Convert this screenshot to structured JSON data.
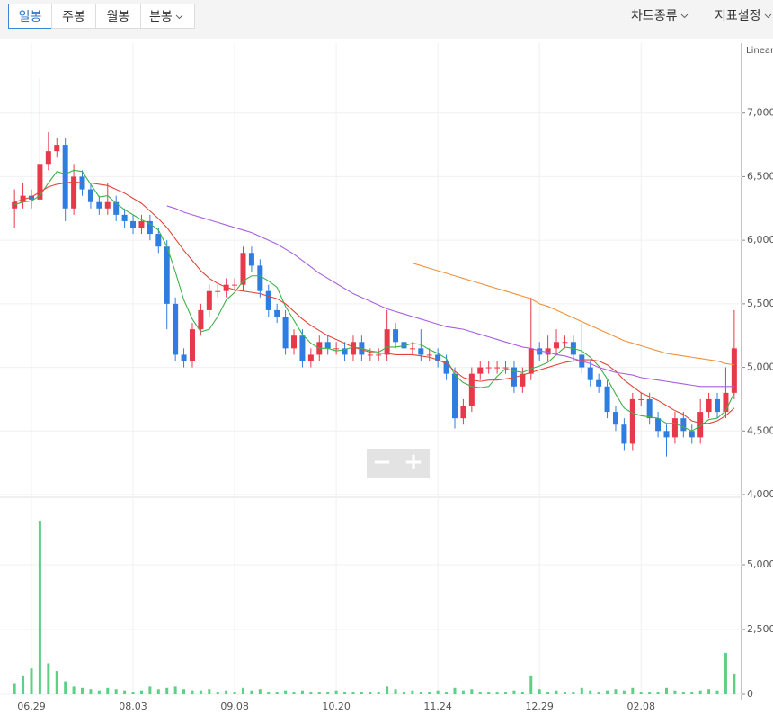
{
  "toolbar": {
    "periods": [
      "일봉",
      "주봉",
      "월봉",
      "분봉"
    ],
    "right": [
      "차트종류",
      "지표설정"
    ]
  },
  "chart_data": {
    "type": "candlestick",
    "scale_label": "Linear",
    "categories": [
      null,
      null,
      "06.29",
      null,
      null,
      null,
      null,
      null,
      null,
      null,
      null,
      null,
      null,
      null,
      "08.03",
      null,
      null,
      null,
      null,
      null,
      null,
      null,
      null,
      null,
      null,
      null,
      "09.08",
      null,
      null,
      null,
      null,
      null,
      null,
      null,
      null,
      null,
      null,
      null,
      "10.20",
      null,
      null,
      null,
      null,
      null,
      null,
      null,
      null,
      null,
      null,
      null,
      "11.24",
      null,
      null,
      null,
      null,
      null,
      null,
      null,
      null,
      null,
      null,
      null,
      "12.29",
      null,
      null,
      null,
      null,
      null,
      null,
      null,
      null,
      null,
      null,
      null,
      "02.08",
      null,
      null,
      null,
      null,
      null,
      null,
      null,
      null,
      null,
      null,
      null
    ],
    "open": [
      6250,
      6300,
      6350,
      6320,
      6600,
      6700,
      6750,
      6250,
      6500,
      6400,
      6300,
      6250,
      6300,
      6200,
      6150,
      6100,
      6150,
      6050,
      5950,
      5500,
      5100,
      5050,
      5300,
      5450,
      5600,
      5600,
      5650,
      5650,
      5900,
      5800,
      5600,
      5450,
      5400,
      5150,
      5250,
      5050,
      5100,
      5200,
      5150,
      5150,
      5100,
      5200,
      5100,
      5100,
      5100,
      5300,
      5200,
      5150,
      5150,
      5100,
      5100,
      5050,
      4950,
      4600,
      4700,
      4950,
      5000,
      5000,
      5000,
      5000,
      4850,
      4950,
      5150,
      5100,
      5150,
      5200,
      5200,
      5100,
      5000,
      4900,
      4850,
      4650,
      4550,
      4400,
      4750,
      4750,
      4600,
      4500,
      4450,
      4600,
      4500,
      4450,
      4650,
      4750,
      4650,
      4800
    ],
    "high": [
      6400,
      6450,
      6400,
      7270,
      6850,
      6800,
      6800,
      6600,
      6550,
      6450,
      6350,
      6450,
      6350,
      6250,
      6200,
      6200,
      6200,
      6100,
      6000,
      5550,
      5150,
      5350,
      5500,
      5650,
      5650,
      5700,
      5700,
      5950,
      5950,
      5850,
      5650,
      5500,
      5450,
      5300,
      5300,
      5150,
      5250,
      5250,
      5200,
      5200,
      5250,
      5250,
      5150,
      5150,
      5450,
      5350,
      5250,
      5200,
      5300,
      5150,
      5150,
      5100,
      5000,
      4750,
      5000,
      5050,
      5050,
      5050,
      5050,
      5050,
      5000,
      5550,
      5200,
      5250,
      5300,
      5250,
      5250,
      5350,
      5050,
      4950,
      4900,
      4700,
      4600,
      4800,
      4800,
      4800,
      4650,
      4550,
      4650,
      4650,
      4550,
      4750,
      4800,
      4800,
      5000,
      5450
    ],
    "low": [
      6100,
      6250,
      6250,
      6300,
      6550,
      6650,
      6150,
      6200,
      6350,
      6250,
      6200,
      6200,
      6150,
      6100,
      6050,
      6050,
      6000,
      5900,
      5300,
      5050,
      5000,
      5000,
      5250,
      5400,
      5550,
      5550,
      5600,
      5600,
      5750,
      5550,
      5400,
      5350,
      5100,
      5100,
      5000,
      5000,
      5050,
      5100,
      5100,
      5050,
      5050,
      5050,
      5050,
      5050,
      5050,
      5150,
      5100,
      5100,
      5050,
      5050,
      5000,
      4900,
      4520,
      4550,
      4650,
      4900,
      4950,
      4950,
      4950,
      4800,
      4800,
      4900,
      5050,
      5050,
      5100,
      5150,
      5050,
      4950,
      4850,
      4800,
      4600,
      4500,
      4350,
      4350,
      4700,
      4550,
      4450,
      4300,
      4400,
      4450,
      4400,
      4400,
      4600,
      4600,
      4600,
      4750
    ],
    "close": [
      6300,
      6350,
      6320,
      6600,
      6700,
      6750,
      6250,
      6500,
      6400,
      6300,
      6250,
      6300,
      6200,
      6150,
      6100,
      6150,
      6050,
      5950,
      5500,
      5100,
      5050,
      5300,
      5450,
      5600,
      5600,
      5650,
      5650,
      5900,
      5800,
      5600,
      5450,
      5400,
      5150,
      5250,
      5050,
      5100,
      5200,
      5150,
      5150,
      5100,
      5200,
      5100,
      5100,
      5100,
      5300,
      5200,
      5150,
      5150,
      5100,
      5100,
      5050,
      4950,
      4600,
      4700,
      4950,
      5000,
      5000,
      5000,
      5000,
      4850,
      4950,
      5150,
      5100,
      5150,
      5200,
      5200,
      5100,
      5000,
      4900,
      4850,
      4650,
      4550,
      4400,
      4750,
      4750,
      4600,
      4500,
      4450,
      4600,
      4500,
      4450,
      4650,
      4750,
      4650,
      4800,
      5150
    ],
    "up_color": "#e8394a",
    "down_color": "#2f7de1",
    "ylim": [
      4000,
      7500
    ],
    "yticks": [
      {
        "value": 4000,
        "label": "4,000"
      },
      {
        "value": 4500,
        "label": "4,500"
      },
      {
        "value": 5000,
        "label": "5,000"
      },
      {
        "value": 5500,
        "label": "5,500"
      },
      {
        "value": 6000,
        "label": "6,000"
      },
      {
        "value": 6500,
        "label": "6,500"
      },
      {
        "value": 7000,
        "label": "7,000"
      }
    ],
    "grid": true,
    "moving_averages": [
      {
        "color": "#3cb24a",
        "values": [
          6280,
          6300,
          6310,
          6350,
          6450,
          6540,
          6520,
          6550,
          6540,
          6440,
          6340,
          6350,
          6290,
          6240,
          6200,
          6160,
          6130,
          6080,
          5950,
          5750,
          5530,
          5380,
          5280,
          5300,
          5400,
          5530,
          5590,
          5680,
          5720,
          5720,
          5680,
          5630,
          5480,
          5370,
          5260,
          5190,
          5150,
          5150,
          5130,
          5140,
          5160,
          5150,
          5130,
          5120,
          5160,
          5160,
          5170,
          5190,
          5180,
          5140,
          5110,
          5070,
          4940,
          4880,
          4850,
          4840,
          4850,
          4930,
          4990,
          4970,
          4960,
          4990,
          5010,
          5040,
          5100,
          5160,
          5150,
          5130,
          5080,
          5010,
          4910,
          4790,
          4680,
          4640,
          4620,
          4610,
          4600,
          4560,
          4560,
          4530,
          4500,
          4540,
          4590,
          4600,
          4660,
          4800
        ]
      },
      {
        "color": "#e0463c",
        "values": [
          6300,
          6320,
          6340,
          6380,
          6420,
          6440,
          6450,
          6460,
          6450,
          6450,
          6440,
          6430,
          6400,
          6370,
          6330,
          6290,
          6230,
          6170,
          6100,
          6010,
          5920,
          5840,
          5760,
          5700,
          5660,
          5630,
          5610,
          5600,
          5590,
          5580,
          5560,
          5540,
          5500,
          5440,
          5380,
          5330,
          5290,
          5250,
          5220,
          5190,
          5160,
          5140,
          5120,
          5110,
          5110,
          5100,
          5100,
          5100,
          5090,
          5080,
          5060,
          5030,
          4970,
          4920,
          4900,
          4890,
          4900,
          4900,
          4910,
          4920,
          4940,
          4960,
          4980,
          5000,
          5020,
          5040,
          5050,
          5060,
          5060,
          5050,
          5020,
          4970,
          4900,
          4850,
          4800,
          4770,
          4740,
          4700,
          4660,
          4630,
          4580,
          4560,
          4560,
          4580,
          4620,
          4680
        ]
      },
      {
        "color": "#a95ee0",
        "values": [
          null,
          null,
          null,
          null,
          null,
          null,
          null,
          null,
          null,
          null,
          null,
          null,
          null,
          null,
          null,
          null,
          null,
          null,
          6270,
          6250,
          6220,
          6200,
          6180,
          6160,
          6140,
          6120,
          6100,
          6080,
          6060,
          6030,
          6000,
          5970,
          5930,
          5890,
          5840,
          5790,
          5740,
          5700,
          5660,
          5620,
          5580,
          5550,
          5520,
          5490,
          5460,
          5440,
          5420,
          5400,
          5380,
          5360,
          5340,
          5320,
          5310,
          5300,
          5280,
          5260,
          5240,
          5220,
          5200,
          5180,
          5160,
          5150,
          5130,
          5120,
          5100,
          5090,
          5070,
          5050,
          5030,
          5000,
          4980,
          4960,
          4950,
          4940,
          4920,
          4910,
          4900,
          4890,
          4880,
          4870,
          4860,
          4850,
          4850,
          4850,
          4850,
          4850
        ]
      },
      {
        "color": "#f0913a",
        "values": [
          null,
          null,
          null,
          null,
          null,
          null,
          null,
          null,
          null,
          null,
          null,
          null,
          null,
          null,
          null,
          null,
          null,
          null,
          null,
          null,
          null,
          null,
          null,
          null,
          null,
          null,
          null,
          null,
          null,
          null,
          null,
          null,
          null,
          null,
          null,
          null,
          null,
          null,
          null,
          null,
          null,
          null,
          null,
          null,
          null,
          null,
          null,
          5820,
          5800,
          5780,
          5760,
          5740,
          5720,
          5700,
          5680,
          5660,
          5640,
          5620,
          5600,
          5580,
          5560,
          5540,
          5500,
          5480,
          5450,
          5420,
          5390,
          5360,
          5330,
          5300,
          5270,
          5240,
          5210,
          5190,
          5170,
          5150,
          5130,
          5110,
          5100,
          5090,
          5080,
          5070,
          5060,
          5050,
          5030,
          5020
        ]
      }
    ],
    "volume": {
      "color": "#5fcf86",
      "values": [
        400000,
        700000,
        1000000,
        6700000,
        1200000,
        900000,
        500000,
        300000,
        250000,
        200000,
        150000,
        250000,
        200000,
        150000,
        100000,
        150000,
        300000,
        200000,
        250000,
        300000,
        200000,
        150000,
        150000,
        200000,
        100000,
        150000,
        100000,
        250000,
        150000,
        200000,
        100000,
        100000,
        150000,
        100000,
        150000,
        100000,
        100000,
        100000,
        150000,
        100000,
        100000,
        100000,
        100000,
        100000,
        300000,
        200000,
        100000,
        150000,
        100000,
        100000,
        150000,
        100000,
        250000,
        150000,
        200000,
        100000,
        100000,
        100000,
        100000,
        150000,
        100000,
        700000,
        200000,
        100000,
        150000,
        100000,
        100000,
        250000,
        150000,
        100000,
        150000,
        200000,
        150000,
        250000,
        100000,
        100000,
        100000,
        250000,
        150000,
        100000,
        100000,
        150000,
        200000,
        150000,
        1600000,
        800000
      ],
      "ylim": [
        0,
        7500000
      ],
      "yticks": [
        0,
        {
          "value": 2500000,
          "label": "2,500,000"
        },
        {
          "value": 5000000,
          "label": "5,000,000"
        }
      ]
    }
  }
}
